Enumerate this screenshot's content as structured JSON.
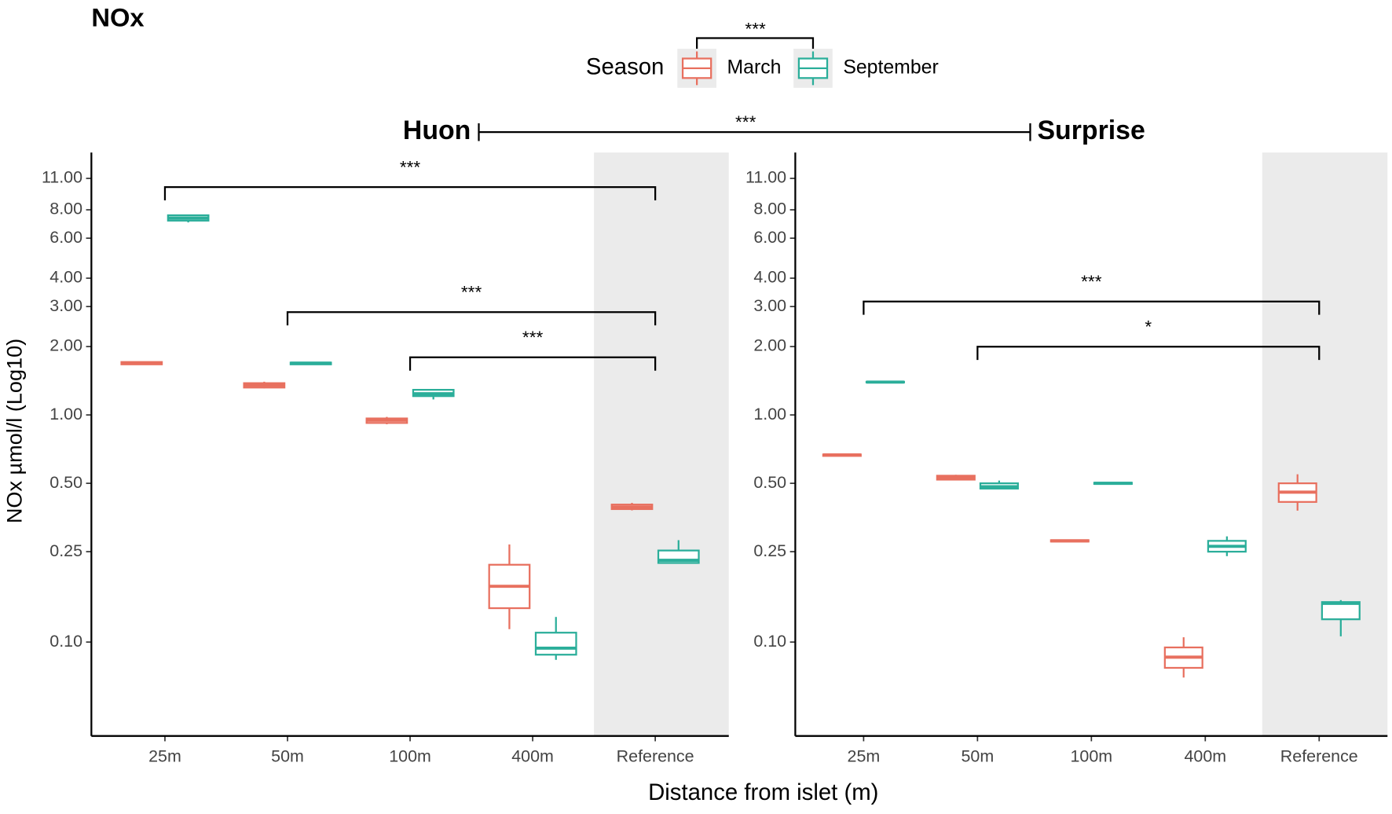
{
  "title": "NOx",
  "legend_title": "Season",
  "season_significance": "***",
  "site_significance": "***",
  "x_label": "Distance from islet (m)",
  "y_label": "NOx µmol/l (Log10)",
  "chart_data": [
    {
      "type": "box",
      "title": "Huon",
      "log_scale": true,
      "ylim": [
        0.0386,
        14.3
      ],
      "yticks": [
        {
          "value": 11,
          "label": "11.00"
        },
        {
          "value": 8,
          "label": "8.00"
        },
        {
          "value": 6,
          "label": "6.00"
        },
        {
          "value": 4,
          "label": "4.00"
        },
        {
          "value": 3,
          "label": "3.00"
        },
        {
          "value": 2,
          "label": "2.00"
        },
        {
          "value": 1,
          "label": "1.00"
        },
        {
          "value": 0.5,
          "label": "0.50"
        },
        {
          "value": 0.25,
          "label": "0.25"
        },
        {
          "value": 0.1,
          "label": "0.10"
        }
      ],
      "categories": [
        "25m",
        "50m",
        "100m",
        "400m",
        "Reference"
      ],
      "highlight": "Reference",
      "series": [
        {
          "name": "March",
          "color": "#e8705f",
          "values": [
            {
              "min": 1.67,
              "q1": 1.67,
              "median": 1.69,
              "q3": 1.71,
              "max": 1.71
            },
            {
              "min": 1.31,
              "q1": 1.32,
              "median": 1.35,
              "q3": 1.38,
              "max": 1.4
            },
            {
              "min": 0.91,
              "q1": 0.922,
              "median": 0.947,
              "q3": 0.965,
              "max": 0.98
            },
            {
              "min": 0.114,
              "q1": 0.141,
              "median": 0.176,
              "q3": 0.219,
              "max": 0.269
            },
            {
              "min": 0.38,
              "q1": 0.385,
              "median": 0.393,
              "q3": 0.403,
              "max": 0.41
            }
          ]
        },
        {
          "name": "September",
          "color": "#2bae9a",
          "values": [
            {
              "min": 7.04,
              "q1": 7.17,
              "median": 7.36,
              "q3": 7.57,
              "max": 7.6
            },
            {
              "min": 1.67,
              "q1": 1.67,
              "median": 1.69,
              "q3": 1.7,
              "max": 1.7
            },
            {
              "min": 1.17,
              "q1": 1.21,
              "median": 1.24,
              "q3": 1.29,
              "max": 1.29
            },
            {
              "min": 0.0835,
              "q1": 0.088,
              "median": 0.094,
              "q3": 0.11,
              "max": 0.129
            },
            {
              "min": 0.223,
              "q1": 0.223,
              "median": 0.229,
              "q3": 0.253,
              "max": 0.281
            }
          ]
        }
      ],
      "annotations": [
        {
          "from": "25m",
          "to": "Reference",
          "label": "***"
        },
        {
          "from": "50m",
          "to": "Reference",
          "label": "***"
        },
        {
          "from": "100m",
          "to": "Reference",
          "label": "***"
        }
      ]
    },
    {
      "type": "box",
      "title": "Surprise",
      "log_scale": true,
      "ylim": [
        0.0386,
        14.3
      ],
      "yticks": [
        {
          "value": 11,
          "label": "11.00"
        },
        {
          "value": 8,
          "label": "8.00"
        },
        {
          "value": 6,
          "label": "6.00"
        },
        {
          "value": 4,
          "label": "4.00"
        },
        {
          "value": 3,
          "label": "3.00"
        },
        {
          "value": 2,
          "label": "2.00"
        },
        {
          "value": 1,
          "label": "1.00"
        },
        {
          "value": 0.5,
          "label": "0.50"
        },
        {
          "value": 0.25,
          "label": "0.25"
        },
        {
          "value": 0.1,
          "label": "0.10"
        }
      ],
      "categories": [
        "25m",
        "50m",
        "100m",
        "400m",
        "Reference"
      ],
      "highlight": "Reference",
      "series": [
        {
          "color": "#e8705f",
          "values": [
            {
              "min": 0.66,
              "q1": 0.66,
              "median": 0.667,
              "q3": 0.67,
              "max": 0.67
            },
            {
              "min": 0.515,
              "q1": 0.519,
              "median": 0.528,
              "q3": 0.54,
              "max": 0.545
            },
            {
              "min": 0.277,
              "q1": 0.277,
              "median": 0.279,
              "q3": 0.281,
              "max": 0.281
            },
            {
              "min": 0.0698,
              "q1": 0.077,
              "median": 0.0858,
              "q3": 0.0947,
              "max": 0.105
            },
            {
              "min": 0.379,
              "q1": 0.414,
              "median": 0.457,
              "q3": 0.5,
              "max": 0.548
            }
          ]
        },
        {
          "color": "#2bae9a",
          "values": [
            {
              "min": 1.39,
              "q1": 1.39,
              "median": 1.395,
              "q3": 1.4,
              "max": 1.4
            },
            {
              "min": 0.474,
              "q1": 0.474,
              "median": 0.483,
              "q3": 0.5,
              "max": 0.514
            },
            {
              "min": 0.497,
              "q1": 0.497,
              "median": 0.5,
              "q3": 0.503,
              "max": 0.503
            },
            {
              "min": 0.239,
              "q1": 0.25,
              "median": 0.264,
              "q3": 0.279,
              "max": 0.292
            },
            {
              "min": 0.106,
              "q1": 0.126,
              "median": 0.148,
              "q3": 0.15,
              "max": 0.153
            }
          ]
        }
      ],
      "annotations": [
        {
          "from": "25m",
          "to": "Reference",
          "label": "***"
        },
        {
          "from": "50m",
          "to": "Reference",
          "label": "*"
        }
      ]
    }
  ]
}
